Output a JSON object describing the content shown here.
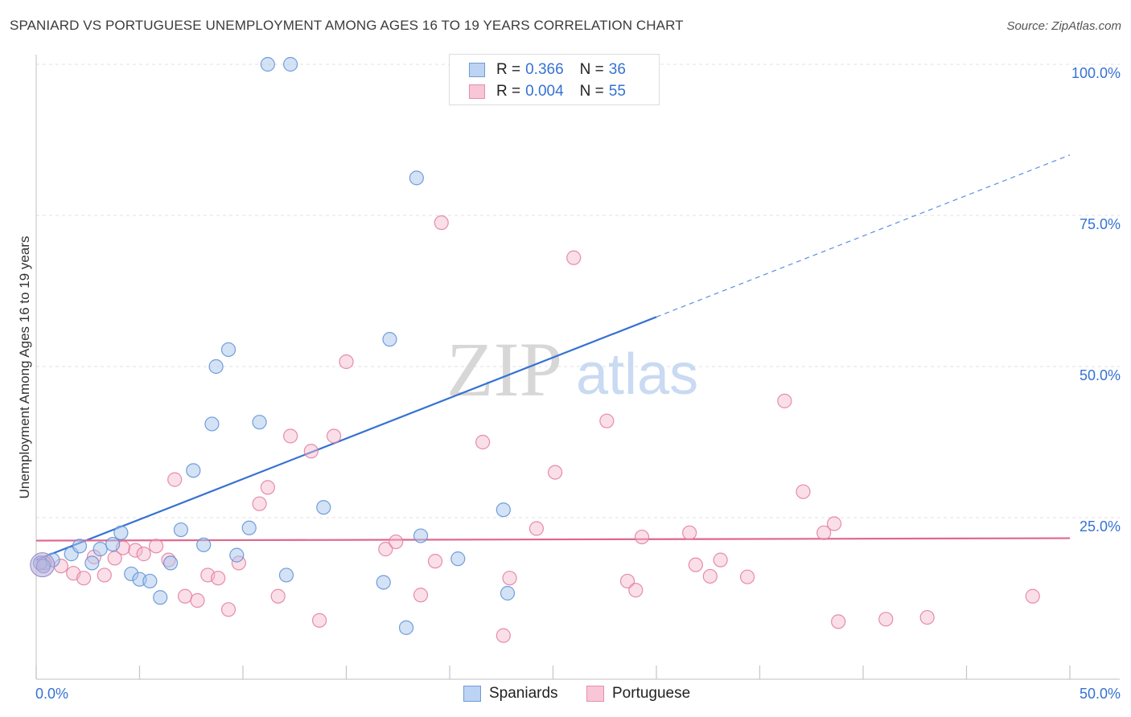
{
  "title": "SPANIARD VS PORTUGUESE UNEMPLOYMENT AMONG AGES 16 TO 19 YEARS CORRELATION CHART",
  "source": "Source: ZipAtlas.com",
  "watermark": {
    "zip": "ZIP",
    "atlas": "atlas"
  },
  "legend": {
    "rows": [
      {
        "r_label": "R =",
        "r_value": "0.366",
        "n_label": "N =",
        "n_value": "36"
      },
      {
        "r_label": "R =",
        "r_value": "0.004",
        "n_label": "N =",
        "n_value": "55"
      }
    ]
  },
  "colors": {
    "blue_fill": "#a9c6ee",
    "blue_stroke": "#5b8fd4",
    "blue_line": "#3572d3",
    "pink_fill": "#f5b8cc",
    "pink_stroke": "#e27a9c",
    "pink_line": "#e0668d",
    "grid": "#e2e2e2",
    "tick_label": "#3572d3"
  },
  "chart_data": {
    "type": "scatter",
    "title": "SPANIARD VS PORTUGUESE UNEMPLOYMENT AMONG AGES 16 TO 19 YEARS CORRELATION CHART",
    "xlabel": "",
    "ylabel": "Unemployment Among Ages 16 to 19 years",
    "xlim": [
      0,
      50
    ],
    "ylim": [
      0,
      100
    ],
    "x_tick_labels": [
      "0.0%",
      "50.0%"
    ],
    "y_ticks": [
      25,
      50,
      75,
      100
    ],
    "y_tick_labels": [
      "25.0%",
      "50.0%",
      "75.0%",
      "100.0%"
    ],
    "grid": true,
    "legend_position": "bottom",
    "series": [
      {
        "name": "Spaniards",
        "trend": {
          "x": [
            0,
            30
          ],
          "y": [
            18,
            58.2
          ],
          "dashed_to": [
            50,
            85
          ]
        },
        "points": [
          [
            0.2,
            17.5
          ],
          [
            0.8,
            18
          ],
          [
            1.7,
            19
          ],
          [
            2.1,
            20.3
          ],
          [
            2.7,
            17.5
          ],
          [
            3.1,
            19.8
          ],
          [
            3.7,
            20.6
          ],
          [
            4.1,
            22.5
          ],
          [
            4.6,
            15.7
          ],
          [
            5.0,
            14.8
          ],
          [
            5.5,
            14.5
          ],
          [
            6.0,
            11.8
          ],
          [
            6.5,
            17.5
          ],
          [
            7.0,
            23.0
          ],
          [
            7.6,
            32.8
          ],
          [
            8.1,
            20.5
          ],
          [
            8.5,
            40.5
          ],
          [
            8.7,
            50.0
          ],
          [
            9.3,
            52.8
          ],
          [
            9.7,
            18.8
          ],
          [
            10.3,
            23.3
          ],
          [
            10.8,
            40.8
          ],
          [
            11.2,
            100
          ],
          [
            12.3,
            100
          ],
          [
            12.1,
            15.5
          ],
          [
            13.9,
            26.7
          ],
          [
            16.8,
            14.3
          ],
          [
            17.1,
            54.5
          ],
          [
            17.9,
            6.8
          ],
          [
            18.6,
            22.0
          ],
          [
            18.4,
            81.2
          ],
          [
            20.4,
            18.2
          ],
          [
            22.6,
            26.3
          ],
          [
            22.8,
            12.5
          ],
          [
            26.8,
            100
          ],
          [
            0.35,
            17.0
          ]
        ]
      },
      {
        "name": "Portuguese",
        "trend": {
          "x": [
            0,
            50
          ],
          "y": [
            21.2,
            21.6
          ]
        },
        "points": [
          [
            0.4,
            17.5
          ],
          [
            1.2,
            17.0
          ],
          [
            1.8,
            15.8
          ],
          [
            2.3,
            15.0
          ],
          [
            2.8,
            18.5
          ],
          [
            3.3,
            15.5
          ],
          [
            3.8,
            18.3
          ],
          [
            4.2,
            20.0
          ],
          [
            4.8,
            19.6
          ],
          [
            5.2,
            19.0
          ],
          [
            5.8,
            20.3
          ],
          [
            6.4,
            18.0
          ],
          [
            6.7,
            31.3
          ],
          [
            7.2,
            12.0
          ],
          [
            7.8,
            11.3
          ],
          [
            8.3,
            15.5
          ],
          [
            8.8,
            15.0
          ],
          [
            9.3,
            9.8
          ],
          [
            9.8,
            17.5
          ],
          [
            10.8,
            27.3
          ],
          [
            11.2,
            30.0
          ],
          [
            11.7,
            12.0
          ],
          [
            12.3,
            38.5
          ],
          [
            13.3,
            36.0
          ],
          [
            13.7,
            8.0
          ],
          [
            14.4,
            38.5
          ],
          [
            15.0,
            50.8
          ],
          [
            16.9,
            19.8
          ],
          [
            17.4,
            21.0
          ],
          [
            18.6,
            12.2
          ],
          [
            19.3,
            17.8
          ],
          [
            19.6,
            73.8
          ],
          [
            21.6,
            37.5
          ],
          [
            22.6,
            5.5
          ],
          [
            22.9,
            15.0
          ],
          [
            24.2,
            23.2
          ],
          [
            25.1,
            32.5
          ],
          [
            26.0,
            68.0
          ],
          [
            27.6,
            41.0
          ],
          [
            28.6,
            14.5
          ],
          [
            29.0,
            13.0
          ],
          [
            29.3,
            21.8
          ],
          [
            31.6,
            22.5
          ],
          [
            31.9,
            17.2
          ],
          [
            32.6,
            15.3
          ],
          [
            33.1,
            18.0
          ],
          [
            34.4,
            15.2
          ],
          [
            36.2,
            44.3
          ],
          [
            37.1,
            29.3
          ],
          [
            38.1,
            22.5
          ],
          [
            38.6,
            24.0
          ],
          [
            38.8,
            7.8
          ],
          [
            41.1,
            8.2
          ],
          [
            43.1,
            8.5
          ],
          [
            48.2,
            12.0
          ]
        ]
      }
    ]
  }
}
